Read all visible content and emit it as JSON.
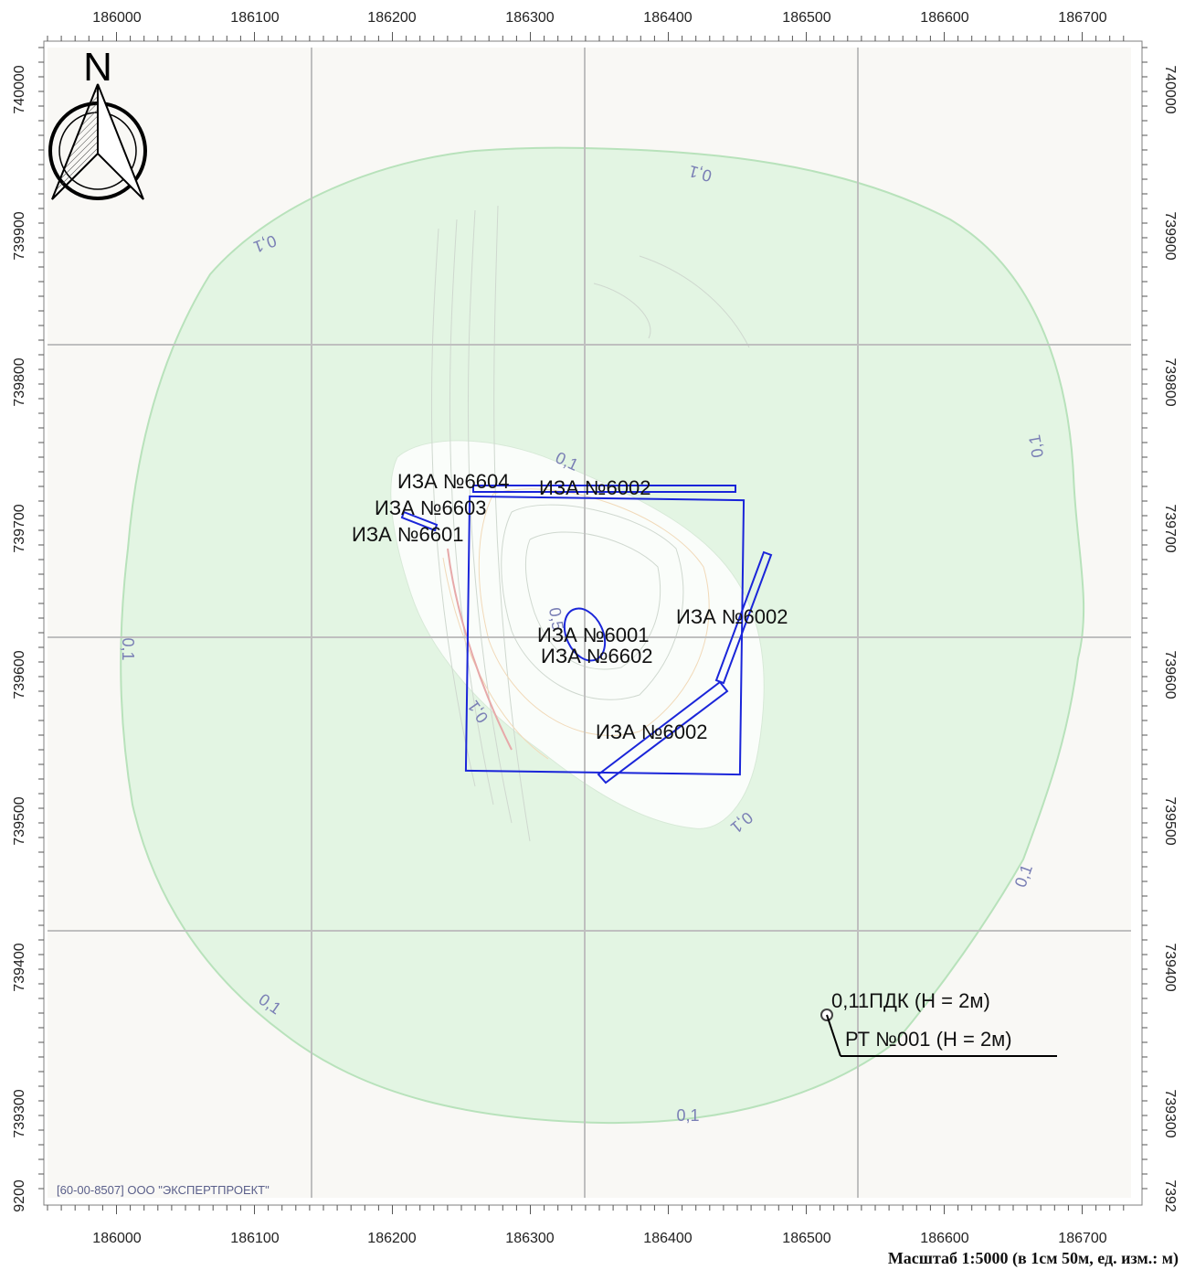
{
  "axes": {
    "x_ticks": [
      "186000",
      "186100",
      "186200",
      "186300",
      "186400",
      "186500",
      "186600",
      "186700"
    ],
    "y_ticks_left": [
      "740000",
      "739900",
      "739800",
      "739700",
      "739600",
      "739500",
      "739400",
      "739300",
      "9200"
    ],
    "y_ticks_right": [
      "740000",
      "739900",
      "739800",
      "739700",
      "739600",
      "739500",
      "739400",
      "739300",
      "7392"
    ]
  },
  "north_label": "N",
  "isolines": [
    "0,1",
    "0,1",
    "0,1",
    "0,1",
    "0,1",
    "0,1",
    "0,1",
    "0,1",
    "0,1",
    "0,1",
    "0,1",
    "0,1",
    "0,1",
    "0,1",
    "0,1",
    "0,5"
  ],
  "sources": [
    "ИЗА №6604",
    "ИЗА №6002",
    "ИЗА №6603",
    "ИЗА №6601",
    "ИЗА №6002",
    "ИЗА №6001",
    "ИЗА №6602",
    "ИЗА №6002"
  ],
  "point": {
    "value": "0,11ПДК (Н = 2м)",
    "name": "РТ №001 (Н = 2м)"
  },
  "company": "[60-00-8507] ООО \"ЭКСПЕРТПРОЕКТ\"",
  "scale": "Масштаб 1:5000 (в 1см 50м, ед. изм.: м)",
  "colors": {
    "zone_fill": "#e3f5e3",
    "zone_stroke": "#b8e2bb",
    "grid": "#bfbfbf",
    "source": "#1a25d9",
    "isoline_label": "#7a7fb5",
    "map_bg": "#f8f8f4"
  }
}
